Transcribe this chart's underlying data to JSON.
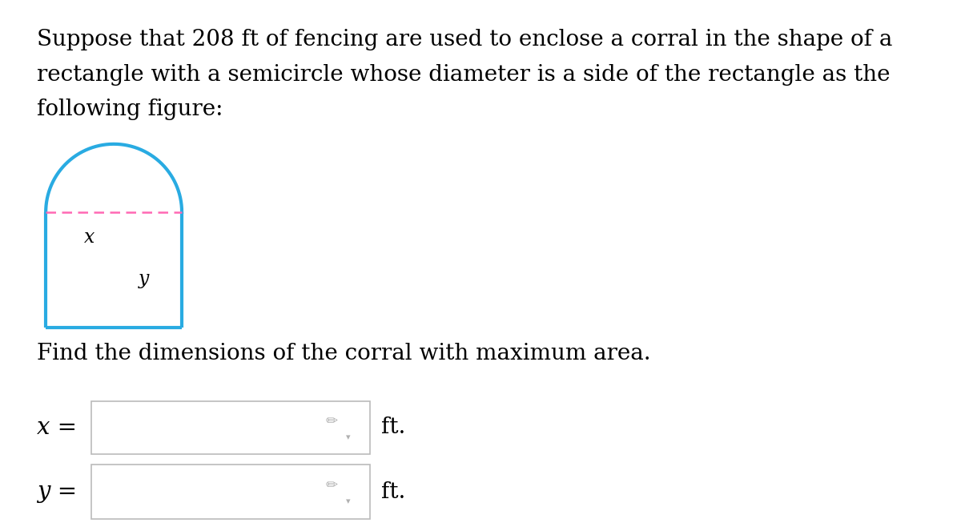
{
  "bg_color": "#ffffff",
  "text_color": "#000000",
  "para_line1": "Suppose that 208 ft of fencing are used to enclose a corral in the shape of a",
  "para_line2": "rectangle with a semicircle whose diameter is a side of the rectangle as the",
  "para_line3": "following figure:",
  "find_text": "Find the dimensions of the corral with maximum area.",
  "x_eq": "x =",
  "y_eq": "y =",
  "ft_text": "ft.",
  "shape_color": "#29ABE2",
  "dashed_color": "#FF69B4",
  "label_x": "x",
  "label_y": "y",
  "text_fontsize": 20,
  "small_fontsize": 17,
  "input_border_color": "#bbbbbb",
  "pencil_color": "#b0b0b0"
}
